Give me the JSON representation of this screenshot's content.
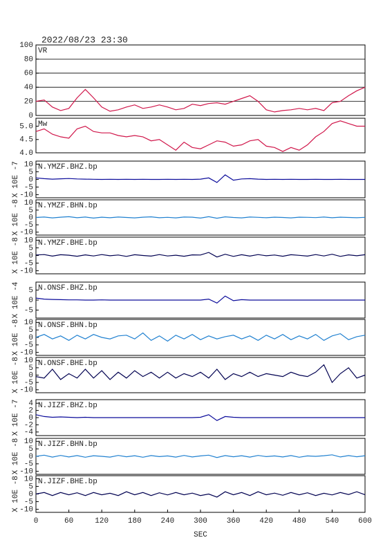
{
  "header": {
    "title": "2022/08/23 23:30"
  },
  "chart_data": [
    {
      "type": "line",
      "title": "VR",
      "color": "#d0164a",
      "grid": true,
      "ylim": [
        0,
        100
      ],
      "yticks": [
        0,
        20,
        40,
        60,
        80,
        100
      ],
      "x": [
        0,
        15,
        30,
        45,
        60,
        75,
        90,
        105,
        120,
        135,
        150,
        165,
        180,
        195,
        210,
        225,
        240,
        255,
        270,
        285,
        300,
        315,
        330,
        345,
        360,
        375,
        390,
        405,
        420,
        435,
        450,
        465,
        480,
        495,
        510,
        525,
        540,
        555,
        570,
        585,
        600
      ],
      "values": [
        20,
        22,
        12,
        7,
        10,
        25,
        37,
        25,
        12,
        6,
        8,
        12,
        15,
        10,
        12,
        15,
        12,
        8,
        10,
        16,
        14,
        17,
        18,
        16,
        20,
        24,
        28,
        20,
        8,
        5,
        7,
        8,
        10,
        8,
        10,
        7,
        18,
        20,
        28,
        35,
        40
      ]
    },
    {
      "type": "line",
      "title": "Mw",
      "color": "#d0164a",
      "grid": false,
      "ylim": [
        4.0,
        5.3
      ],
      "yticks": [
        {
          "value": 4,
          "label": "4.0"
        },
        4.5,
        {
          "value": 5,
          "label": "5.0"
        }
      ],
      "x": [
        0,
        15,
        30,
        45,
        60,
        75,
        90,
        105,
        120,
        135,
        150,
        165,
        180,
        195,
        210,
        225,
        240,
        255,
        270,
        285,
        300,
        315,
        330,
        345,
        360,
        375,
        390,
        405,
        420,
        435,
        450,
        465,
        480,
        495,
        510,
        525,
        540,
        555,
        570,
        585,
        600
      ],
      "values": [
        4.8,
        4.9,
        4.7,
        4.6,
        4.55,
        4.9,
        5.0,
        4.8,
        4.75,
        4.75,
        4.65,
        4.6,
        4.65,
        4.6,
        4.45,
        4.5,
        4.3,
        4.1,
        4.4,
        4.2,
        4.15,
        4.3,
        4.45,
        4.4,
        4.25,
        4.3,
        4.45,
        4.5,
        4.25,
        4.2,
        4.05,
        4.2,
        4.1,
        4.3,
        4.6,
        4.8,
        5.1,
        5.2,
        5.1,
        5.0,
        5.0
      ]
    },
    {
      "type": "line",
      "title": "N.YMZF.BHZ.bp",
      "ylabel": "X 10E -7",
      "color": "#0a0a9a",
      "ylim": [
        -12,
        12
      ],
      "yticks": [
        -10,
        -5,
        0,
        5,
        10
      ],
      "x": [
        0,
        15,
        30,
        45,
        60,
        75,
        90,
        105,
        120,
        135,
        150,
        165,
        180,
        195,
        210,
        225,
        240,
        255,
        270,
        285,
        300,
        315,
        330,
        345,
        360,
        375,
        390,
        405,
        420,
        435,
        450,
        465,
        480,
        495,
        510,
        525,
        540,
        555,
        570,
        585,
        600
      ],
      "values": [
        1,
        0.5,
        0.2,
        0.4,
        0.6,
        0.3,
        0.2,
        0.1,
        0,
        0.1,
        0,
        0.1,
        0,
        0.1,
        0,
        0,
        0.1,
        0,
        0.1,
        0,
        0.2,
        1,
        -2,
        3,
        -0.5,
        0.3,
        0.5,
        0.2,
        0,
        0.1,
        0,
        0.1,
        0,
        0,
        0.1,
        0,
        0,
        0.1,
        0,
        0,
        0
      ]
    },
    {
      "type": "line",
      "title": "N.YMZF.BHN.bp",
      "ylabel": "X 10E -8",
      "color": "#1f80d0",
      "ylim": [
        -12,
        12
      ],
      "yticks": [
        -10,
        -5,
        0,
        5,
        10
      ],
      "x": [
        0,
        15,
        30,
        45,
        60,
        75,
        90,
        105,
        120,
        135,
        150,
        165,
        180,
        195,
        210,
        225,
        240,
        255,
        270,
        285,
        300,
        315,
        330,
        345,
        360,
        375,
        390,
        405,
        420,
        435,
        450,
        465,
        480,
        495,
        510,
        525,
        540,
        555,
        570,
        585,
        600
      ],
      "values": [
        0,
        0.3,
        -0.3,
        0.2,
        0.5,
        -0.2,
        0.3,
        -0.4,
        0.2,
        -0.2,
        0.3,
        0,
        -0.3,
        0.2,
        0.4,
        -0.2,
        0.1,
        -0.3,
        0.3,
        0.2,
        -0.4,
        0.5,
        -0.5,
        0.4,
        0,
        -0.3,
        0.3,
        0.1,
        -0.2,
        0.2,
        0,
        -0.3,
        0.2,
        0.1,
        -0.1,
        0.3,
        -0.2,
        0.2,
        0,
        -0.2,
        0.1
      ]
    },
    {
      "type": "line",
      "title": "N.YMZF.BHE.bp",
      "ylabel": "X 10E -8",
      "color": "#000050",
      "ylim": [
        -12,
        12
      ],
      "yticks": [
        -10,
        -5,
        0,
        5,
        10
      ],
      "x": [
        0,
        15,
        30,
        45,
        60,
        75,
        90,
        105,
        120,
        135,
        150,
        165,
        180,
        195,
        210,
        225,
        240,
        255,
        270,
        285,
        300,
        315,
        330,
        345,
        360,
        375,
        390,
        405,
        420,
        435,
        450,
        465,
        480,
        495,
        510,
        525,
        540,
        555,
        570,
        585,
        600
      ],
      "values": [
        0.3,
        0.6,
        -0.4,
        0.5,
        0.2,
        -0.5,
        0.4,
        -0.3,
        0.6,
        -0.2,
        0.3,
        -0.6,
        0.5,
        0,
        -0.4,
        0.6,
        -0.3,
        0.2,
        -0.5,
        0.4,
        0.3,
        2,
        -1,
        0.8,
        -0.6,
        0.5,
        -0.4,
        0.6,
        -0.2,
        0.3,
        -0.5,
        0.5,
        0.1,
        -0.4,
        0.6,
        -0.3,
        0.8,
        -0.6,
        0.4,
        -0.2,
        0.5
      ]
    },
    {
      "type": "line",
      "title": "N.ONSF.BHZ.bp",
      "ylabel": "X 10E -4",
      "color": "#0a0a9a",
      "ylim": [
        -9,
        9
      ],
      "yticks": [
        -5,
        0,
        5
      ],
      "x": [
        0,
        15,
        30,
        45,
        60,
        75,
        90,
        105,
        120,
        135,
        150,
        165,
        180,
        195,
        210,
        225,
        240,
        255,
        270,
        285,
        300,
        315,
        330,
        345,
        360,
        375,
        390,
        405,
        420,
        435,
        450,
        465,
        480,
        495,
        510,
        525,
        540,
        555,
        570,
        585,
        600
      ],
      "values": [
        1,
        0.5,
        0.3,
        0.2,
        0.1,
        0.1,
        0,
        0,
        0.1,
        0,
        0,
        0,
        0,
        0,
        0,
        0,
        0,
        0,
        0,
        0,
        0,
        0.5,
        -1.5,
        2,
        -0.3,
        0.2,
        0,
        0,
        0,
        0,
        0,
        0,
        0,
        0,
        0,
        0,
        0,
        0,
        0,
        0,
        0
      ]
    },
    {
      "type": "line",
      "title": "N.ONSF.BHN.bp",
      "ylabel": "X 10E -8",
      "color": "#1f80d0",
      "ylim": [
        -12,
        12
      ],
      "yticks": [
        -10,
        -5,
        0,
        5,
        10
      ],
      "x": [
        0,
        15,
        30,
        45,
        60,
        75,
        90,
        105,
        120,
        135,
        150,
        165,
        180,
        195,
        210,
        225,
        240,
        255,
        270,
        285,
        300,
        315,
        330,
        345,
        360,
        375,
        390,
        405,
        420,
        435,
        450,
        465,
        480,
        495,
        510,
        525,
        540,
        555,
        570,
        585,
        600
      ],
      "values": [
        0,
        2,
        -1,
        1,
        -2,
        1.5,
        -1,
        2,
        0,
        -1,
        1,
        1.5,
        -1,
        3,
        -2,
        1,
        -2.5,
        1.5,
        -1,
        2,
        -1.5,
        1,
        -1,
        0.5,
        1.5,
        -1,
        1,
        -2,
        1.5,
        -1,
        2,
        -1.5,
        1,
        -1,
        2,
        -2,
        1,
        2.5,
        -1.5,
        0.5,
        1.5
      ]
    },
    {
      "type": "line",
      "title": "N.ONSF.BHE.bp",
      "ylabel": "X 10E -8",
      "color": "#000050",
      "ylim": [
        -12,
        12
      ],
      "yticks": [
        -10,
        -5,
        0,
        5,
        10
      ],
      "x": [
        0,
        15,
        30,
        45,
        60,
        75,
        90,
        105,
        120,
        135,
        150,
        165,
        180,
        195,
        210,
        225,
        240,
        255,
        270,
        285,
        300,
        315,
        330,
        345,
        360,
        375,
        390,
        405,
        420,
        435,
        450,
        465,
        480,
        495,
        510,
        525,
        540,
        555,
        570,
        585,
        600
      ],
      "values": [
        -1,
        -2,
        4,
        -3,
        1,
        -2,
        4,
        -2,
        3,
        -3,
        2,
        -2,
        3,
        -1,
        2,
        -2,
        2,
        -2,
        1,
        -1,
        2,
        -2,
        4,
        -3,
        1,
        -1,
        2,
        -1,
        1,
        0,
        -1,
        2,
        0,
        -1,
        2,
        7,
        -5,
        1,
        5,
        -2,
        0
      ]
    },
    {
      "type": "line",
      "title": "N.JIZF.BHZ.bp",
      "ylabel": "X 10E -7",
      "color": "#0a0a9a",
      "ylim": [
        -5,
        5
      ],
      "yticks": [
        -4,
        -2,
        0,
        2,
        4
      ],
      "x": [
        0,
        15,
        30,
        45,
        60,
        75,
        90,
        105,
        120,
        135,
        150,
        165,
        180,
        195,
        210,
        225,
        240,
        255,
        270,
        285,
        300,
        315,
        330,
        345,
        360,
        375,
        390,
        405,
        420,
        435,
        450,
        465,
        480,
        495,
        510,
        525,
        540,
        555,
        570,
        585,
        600
      ],
      "values": [
        0.8,
        0.3,
        0.1,
        0.2,
        0.1,
        0,
        0.1,
        0,
        0,
        0,
        0,
        0,
        0,
        0,
        0,
        0,
        0,
        0,
        0,
        0,
        0.1,
        0.8,
        -0.8,
        0.3,
        0.1,
        0,
        0,
        0,
        0,
        0,
        0,
        0,
        0,
        0,
        0,
        0,
        0,
        0,
        0,
        0,
        0
      ]
    },
    {
      "type": "line",
      "title": "N.JIZF.BHN.bp",
      "ylabel": "X 10E -8",
      "color": "#1f80d0",
      "ylim": [
        -12,
        12
      ],
      "yticks": [
        -10,
        -5,
        0,
        5,
        10
      ],
      "x": [
        0,
        15,
        30,
        45,
        60,
        75,
        90,
        105,
        120,
        135,
        150,
        165,
        180,
        195,
        210,
        225,
        240,
        255,
        270,
        285,
        300,
        315,
        330,
        345,
        360,
        375,
        390,
        405,
        420,
        435,
        450,
        465,
        480,
        495,
        510,
        525,
        540,
        555,
        570,
        585,
        600
      ],
      "values": [
        0,
        0.8,
        -0.5,
        0.6,
        -0.4,
        0.5,
        -0.6,
        0.4,
        0,
        -0.5,
        0.6,
        -0.3,
        0.4,
        -0.6,
        0.5,
        -0.2,
        0.3,
        -0.5,
        0.6,
        -0.4,
        0.3,
        0.8,
        -0.8,
        0.5,
        -0.3,
        0.4,
        -0.5,
        0.6,
        -0.2,
        0.3,
        -0.4,
        0.5,
        -0.6,
        0.3,
        0,
        0.4,
        1,
        -0.4,
        0.5,
        -0.3,
        0.4
      ]
    },
    {
      "type": "line",
      "title": "N.JIZF.BHE.bp",
      "ylabel": "X 10E -8",
      "xlabel": "SEC",
      "color": "#000050",
      "ylim": [
        -12,
        12
      ],
      "yticks": [
        -10,
        -5,
        0,
        5,
        10
      ],
      "xlim": [
        0,
        600
      ],
      "xticks": [
        0,
        60,
        120,
        180,
        240,
        300,
        360,
        420,
        480,
        540,
        600
      ],
      "x": [
        0,
        15,
        30,
        45,
        60,
        75,
        90,
        105,
        120,
        135,
        150,
        165,
        180,
        195,
        210,
        225,
        240,
        255,
        270,
        285,
        300,
        315,
        330,
        345,
        360,
        375,
        390,
        405,
        420,
        435,
        450,
        465,
        480,
        495,
        510,
        525,
        540,
        555,
        570,
        585,
        600
      ],
      "values": [
        0,
        1,
        -1,
        1,
        -0.5,
        0.8,
        -1,
        1,
        -0.5,
        0.5,
        -1,
        1.5,
        -0.5,
        1,
        -1,
        0.8,
        -0.6,
        1,
        -0.5,
        0.6,
        -1,
        0,
        -2,
        1.5,
        -0.5,
        1,
        -1,
        1.5,
        -0.5,
        0.6,
        -0.8,
        1,
        -0.5,
        0.8,
        -1,
        0.5,
        -0.6,
        1,
        -0.3,
        1.5,
        -0.5
      ]
    }
  ]
}
